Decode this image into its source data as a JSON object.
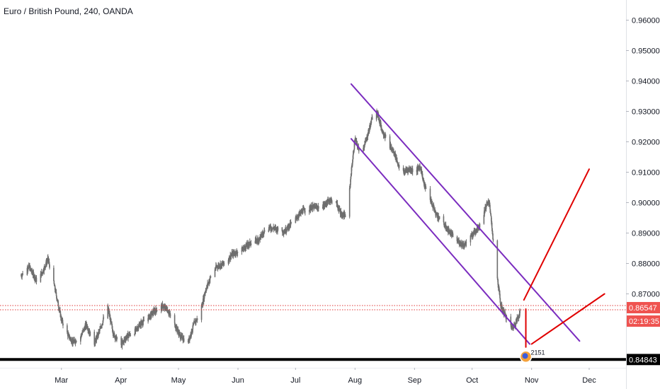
{
  "header": {
    "title": "Euro / British Pound, 240, OANDA"
  },
  "colors": {
    "candle": "#6e6e6e",
    "channel": "#7b2cbf",
    "projection": "#e00000",
    "support": "#000000",
    "price_line": "#e03a3a",
    "price_badge": "#ef5350",
    "axis_bg": "#ffffff",
    "axis_text": "#131722"
  },
  "chart_data": {
    "type": "candlestick",
    "title": "Euro / British Pound, 240, OANDA",
    "x_ticks": [
      "Mar",
      "Apr",
      "May",
      "Jun",
      "Jul",
      "Aug",
      "Sep",
      "Oct",
      "Nov",
      "Dec"
    ],
    "y_ticks": [
      "0.96000",
      "0.95000",
      "0.94000",
      "0.93000",
      "0.92000",
      "0.91000",
      "0.90000",
      "0.89000",
      "0.88000",
      "0.87000"
    ],
    "ylim": [
      0.8455,
      0.9645
    ],
    "close_path": [
      [
        "2019-02-08",
        0.876
      ],
      [
        "2019-02-12",
        0.879
      ],
      [
        "2019-02-16",
        0.8745
      ],
      [
        "2019-02-19",
        0.877
      ],
      [
        "2019-02-22",
        0.8815
      ],
      [
        "2019-02-25",
        0.8735
      ],
      [
        "2019-03-01",
        0.8615
      ],
      [
        "2019-03-04",
        0.857
      ],
      [
        "2019-03-07",
        0.854
      ],
      [
        "2019-03-11",
        0.856
      ],
      [
        "2019-03-14",
        0.86
      ],
      [
        "2019-03-18",
        0.8535
      ],
      [
        "2019-03-21",
        0.858
      ],
      [
        "2019-03-25",
        0.866
      ],
      [
        "2019-03-28",
        0.857
      ],
      [
        "2019-04-01",
        0.853
      ],
      [
        "2019-04-04",
        0.856
      ],
      [
        "2019-04-08",
        0.8575
      ],
      [
        "2019-04-11",
        0.86
      ],
      [
        "2019-04-15",
        0.862
      ],
      [
        "2019-04-18",
        0.864
      ],
      [
        "2019-04-22",
        0.866
      ],
      [
        "2019-04-25",
        0.865
      ],
      [
        "2019-04-29",
        0.86
      ],
      [
        "2019-05-02",
        0.856
      ],
      [
        "2019-05-06",
        0.854
      ],
      [
        "2019-05-09",
        0.86
      ],
      [
        "2019-05-12",
        0.863
      ],
      [
        "2019-05-15",
        0.871
      ],
      [
        "2019-05-18",
        0.876
      ],
      [
        "2019-05-21",
        0.879
      ],
      [
        "2019-05-25",
        0.88
      ],
      [
        "2019-05-29",
        0.883
      ],
      [
        "2019-06-03",
        0.8845
      ],
      [
        "2019-06-07",
        0.8865
      ],
      [
        "2019-06-12",
        0.888
      ],
      [
        "2019-06-16",
        0.892
      ],
      [
        "2019-06-20",
        0.8915
      ],
      [
        "2019-06-25",
        0.8905
      ],
      [
        "2019-06-30",
        0.894
      ],
      [
        "2019-07-05",
        0.8975
      ],
      [
        "2019-07-10",
        0.8985
      ],
      [
        "2019-07-15",
        0.8985
      ],
      [
        "2019-07-19",
        0.901
      ],
      [
        "2019-07-22",
        0.9
      ],
      [
        "2019-07-25",
        0.896
      ],
      [
        "2019-07-28",
        0.8955
      ],
      [
        "2019-07-30",
        0.91
      ],
      [
        "2019-08-01",
        0.921
      ],
      [
        "2019-08-04",
        0.9155
      ],
      [
        "2019-08-07",
        0.921
      ],
      [
        "2019-08-10",
        0.928
      ],
      [
        "2019-08-12",
        0.931
      ],
      [
        "2019-08-15",
        0.924
      ],
      [
        "2019-08-18",
        0.92
      ],
      [
        "2019-08-22",
        0.9155
      ],
      [
        "2019-08-25",
        0.9095
      ],
      [
        "2019-08-29",
        0.911
      ],
      [
        "2019-09-02",
        0.9105
      ],
      [
        "2019-09-04",
        0.912
      ],
      [
        "2019-09-06",
        0.906
      ],
      [
        "2019-09-09",
        0.9015
      ],
      [
        "2019-09-12",
        0.8965
      ],
      [
        "2019-09-16",
        0.893
      ],
      [
        "2019-09-19",
        0.8905
      ],
      [
        "2019-09-23",
        0.8875
      ],
      [
        "2019-09-27",
        0.886
      ],
      [
        "2019-09-30",
        0.8885
      ],
      [
        "2019-10-03",
        0.891
      ],
      [
        "2019-10-06",
        0.8935
      ],
      [
        "2019-10-08",
        0.8985
      ],
      [
        "2019-10-10",
        0.9005
      ],
      [
        "2019-10-12",
        0.887
      ],
      [
        "2019-10-14",
        0.876
      ],
      [
        "2019-10-16",
        0.866
      ],
      [
        "2019-10-19",
        0.862
      ],
      [
        "2019-10-22",
        0.8585
      ],
      [
        "2019-10-24",
        0.861
      ],
      [
        "2019-10-26",
        0.864
      ],
      [
        "2019-10-27",
        0.8655
      ]
    ],
    "channel_upper": {
      "start": [
        "2019-07-30",
        0.939
      ],
      "end": [
        "2019-11-26",
        0.8545
      ]
    },
    "channel_lower": {
      "start": [
        "2019-07-30",
        0.921
      ],
      "end": [
        "2019-10-31",
        0.8535
      ]
    },
    "projection_up": [
      [
        "2019-10-29",
        0.865
      ],
      [
        "2019-10-29",
        0.8525
      ],
      [
        "2019-10-28",
        0.868
      ],
      [
        "2019-12-01",
        0.911
      ]
    ],
    "projection_flat": [
      [
        "2019-11-01",
        0.8535
      ],
      [
        "2019-12-09",
        0.87
      ]
    ],
    "support_level": 0.84843,
    "current_price": "0.86547",
    "countdown": "02:19:35",
    "support_label": "0.84843",
    "marker_label": "2151"
  }
}
